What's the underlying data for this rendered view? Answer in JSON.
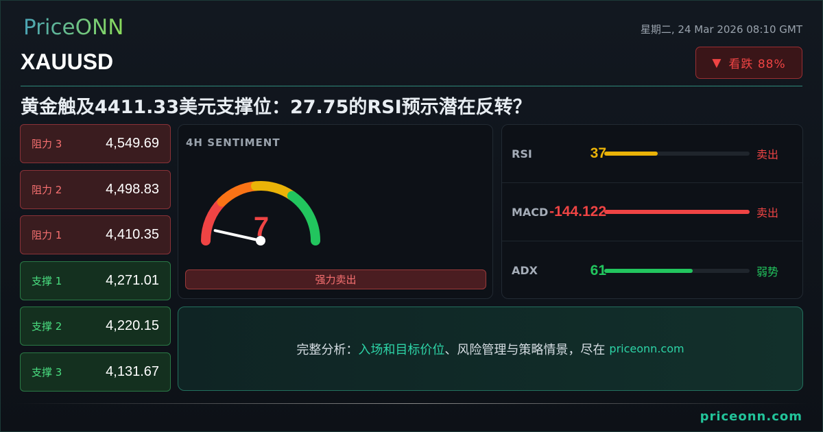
{
  "brand": {
    "logo": "PriceONN",
    "footer_site": "priceonn.com"
  },
  "header": {
    "symbol": "XAUUSD",
    "datetime": "星期二, 24 Mar 2026 08:10 GMT",
    "badge": {
      "icon": "triangle-down-icon",
      "label": "看跌 88%",
      "color": "#ef4444"
    }
  },
  "headline": "黄金触及4411.33美元支撑位：27.75的RSI预示潜在反转？",
  "levels": [
    {
      "label": "阻力 3",
      "value": "4,549.69",
      "type": "resistance"
    },
    {
      "label": "阻力 2",
      "value": "4,498.83",
      "type": "resistance"
    },
    {
      "label": "阻力 1",
      "value": "4,410.35",
      "type": "resistance"
    },
    {
      "label": "支撑 1",
      "value": "4,271.01",
      "type": "support"
    },
    {
      "label": "支撑 2",
      "value": "4,220.15",
      "type": "support"
    },
    {
      "label": "支撑 3",
      "value": "4,131.67",
      "type": "support"
    }
  ],
  "sentiment": {
    "title": "4H SENTIMENT",
    "score": "7",
    "score_value": 7,
    "verdict": "强力卖出",
    "colors": [
      "#ef4444",
      "#f97316",
      "#eab308",
      "#22c55e"
    ]
  },
  "indicators": [
    {
      "name": "RSI",
      "value": "37",
      "fill_pct": 37,
      "signal": "卖出",
      "value_color": "#eab308",
      "bar_color": "#eab308",
      "signal_color": "#ef4444"
    },
    {
      "name": "MACD",
      "value": "-144.122",
      "fill_pct": 100,
      "signal": "卖出",
      "value_color": "#ef4444",
      "bar_color": "#ef4444",
      "signal_color": "#ef4444"
    },
    {
      "name": "ADX",
      "value": "61",
      "fill_pct": 61,
      "signal": "弱势",
      "value_color": "#22c55e",
      "bar_color": "#22c55e",
      "signal_color": "#22c55e"
    }
  ],
  "cta": {
    "prefix": "完整分析：",
    "highlight": "入场和目标价位",
    "suffix": "、风险管理与策略情景，尽在",
    "site": "priceonn.com"
  }
}
